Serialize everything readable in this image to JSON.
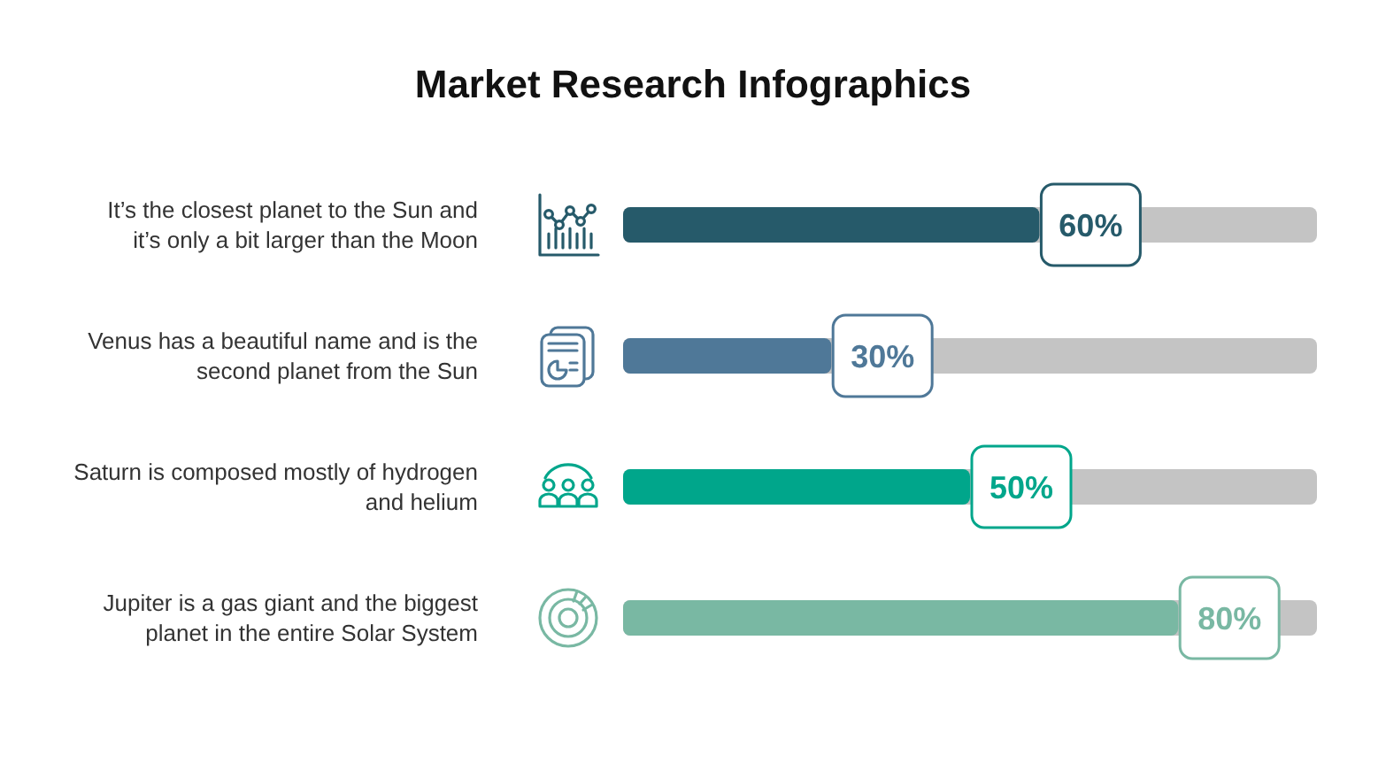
{
  "chart_data": {
    "type": "bar",
    "orientation": "horizontal",
    "title": "Market Research Infographics",
    "categories": [
      "It’s the closest planet to the Sun and it’s only a bit larger than the Moon",
      "Venus has a beautiful name and is the second planet from the Sun",
      "Saturn is composed mostly of hydrogen and helium",
      "Jupiter is a gas giant and the biggest planet in the entire Solar System"
    ],
    "values": [
      60,
      30,
      50,
      80
    ],
    "colors": [
      "#265a6a",
      "#4f7898",
      "#00a68b",
      "#79b8a3"
    ],
    "xlim": [
      0,
      100
    ],
    "value_labels": [
      "60%",
      "30%",
      "50%",
      "80%"
    ],
    "tick_labels": "y"
  }
}
